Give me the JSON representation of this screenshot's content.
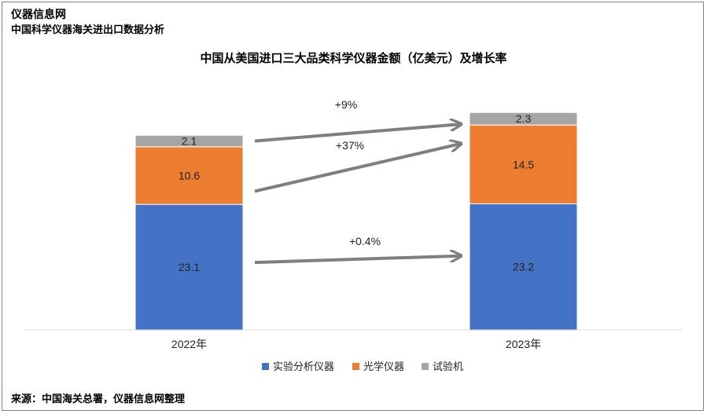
{
  "header": {
    "site_name": "仪器信息网",
    "subtitle": "中国科学仪器海关进出口数据分析"
  },
  "footer": {
    "source": "来源：中国海关总署，仪器信息网整理"
  },
  "colors": {
    "analytical": "#4472c4",
    "optical": "#ed7d31",
    "testing": "#a5a5a5",
    "arrow": "#7f7f7f"
  },
  "chart_data": {
    "type": "bar",
    "stacked": true,
    "title": "中国从美国进口三大品类科学仪器金额（亿美元）及增长率",
    "categories": [
      "2022年",
      "2023年"
    ],
    "series": [
      {
        "name": "实验分析仪器",
        "values": [
          23.1,
          23.2
        ],
        "labels": [
          "23.1",
          "23.2"
        ],
        "color": "#4472c4"
      },
      {
        "name": "光学仪器",
        "values": [
          10.6,
          14.5
        ],
        "labels": [
          "10.6",
          "14.5"
        ],
        "color": "#ed7d31"
      },
      {
        "name": "试验机",
        "values": [
          2.1,
          2.3
        ],
        "labels": [
          "2.1",
          "2.3"
        ],
        "color": "#a5a5a5"
      }
    ],
    "growth_annotations": [
      {
        "series": "试验机",
        "label": "+9%"
      },
      {
        "series": "光学仪器",
        "label": "+37%"
      },
      {
        "series": "实验分析仪器",
        "label": "+0.4%"
      }
    ],
    "ylim": [
      0,
      40
    ],
    "grid": false,
    "legend_position": "bottom"
  }
}
